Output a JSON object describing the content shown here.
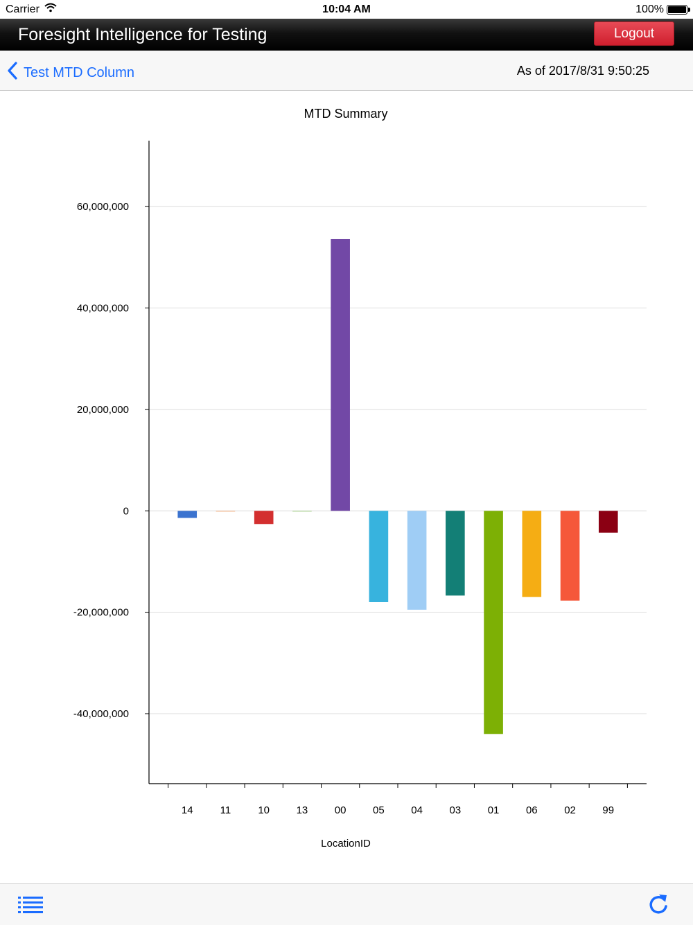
{
  "status_bar": {
    "carrier": "Carrier",
    "time": "10:04 AM",
    "battery": "100%"
  },
  "header": {
    "title": "Foresight Intelligence for Testing",
    "logout_label": "Logout"
  },
  "nav": {
    "back_label": "Test MTD Column",
    "as_of": "As of 2017/8/31 9:50:25"
  },
  "chart_data": {
    "type": "bar",
    "title": "MTD Summary",
    "xlabel": "LocationID",
    "ylabel": "",
    "categories": [
      "14",
      "11",
      "10",
      "13",
      "00",
      "05",
      "04",
      "03",
      "01",
      "06",
      "02",
      "99"
    ],
    "values": [
      -1400000,
      -150000,
      -2600000,
      -150000,
      53600000,
      -18000000,
      -19500000,
      -16700000,
      -44000000,
      -17000000,
      -17700000,
      -4300000
    ],
    "colors": [
      "#3b73cf",
      "#f4b183",
      "#d32f2f",
      "#a9d18e",
      "#7248a6",
      "#37b3de",
      "#9fcdf5",
      "#137f76",
      "#7db005",
      "#f5ad14",
      "#f5583a",
      "#8b0013"
    ],
    "yticks": [
      60000000,
      40000000,
      20000000,
      0,
      -20000000,
      -40000000
    ],
    "ytick_labels": [
      "60,000,000",
      "40,000,000",
      "20,000,000",
      "0",
      "-20,000,000",
      "-40,000,000"
    ],
    "ylim": [
      -53800000,
      73000000
    ],
    "grid": true,
    "legend": "none"
  },
  "toolbar": {
    "menu_icon": "list-icon",
    "refresh_icon": "refresh-icon"
  },
  "colors": {
    "accent": "#1a6cff",
    "logout": "#d9263a"
  }
}
